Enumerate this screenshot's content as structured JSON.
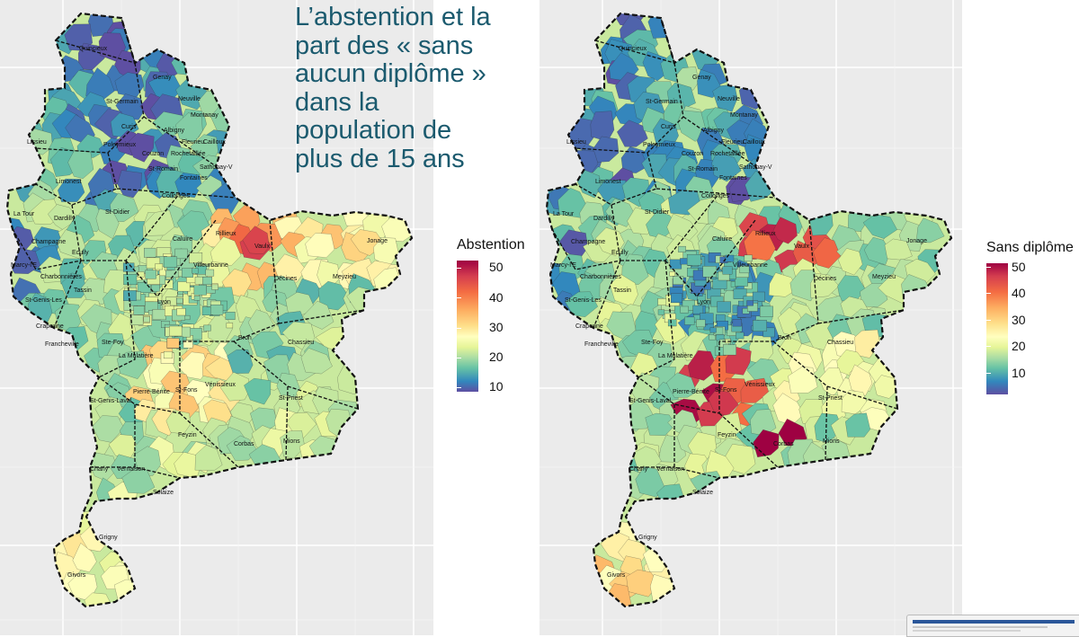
{
  "title": [
    "L’abstention et la",
    "part des « sans",
    "aucun diplôme »",
    "dans la",
    "population de",
    "plus de 15 ans"
  ],
  "maps": [
    {
      "name": "abstention",
      "legend": {
        "title": "Abstention",
        "ticks": [
          "50",
          "40",
          "30",
          "20",
          "10"
        ],
        "min": 10,
        "max": 53
      },
      "colors": {
        "low": "#3f5fa8",
        "mid": "#ffffbf",
        "high": "#9e0142"
      }
    },
    {
      "name": "sans-diplome",
      "legend": {
        "title": "Sans diplôme",
        "ticks": [
          "50",
          "40",
          "30",
          "20",
          "10"
        ],
        "min": 5,
        "max": 52
      },
      "colors": {
        "low": "#3f5fa8",
        "mid": "#ffffbf",
        "high": "#9e0142"
      }
    }
  ],
  "towns": [
    "Quincieux",
    "Genay",
    "St-Germain",
    "Neuville",
    "Montanay",
    "Curis",
    "Albigny",
    "Fleurieu",
    "Cailloux",
    "Lissieu",
    "Poleymieux",
    "Couzon",
    "Rochetaillée",
    "Sathonay-V",
    "St-Romain",
    "Fontaines",
    "Collonges",
    "Limonest",
    "Dardilly",
    "La Tour",
    "St-Didier",
    "Champagne",
    "Ecully",
    "Caluire",
    "Rillieux",
    "Vaulx",
    "Jonage",
    "Marcy-l'E",
    "Charbonnières",
    "Tassin",
    "Villeurbanne",
    "Décines",
    "Meyzieu",
    "St-Genis-Les",
    "Craponne",
    "Lyon",
    "Francheville",
    "Ste-Foy",
    "La Mulatière",
    "Bron",
    "Chassieu",
    "St-Genis-Laval",
    "Pierre-Bénite",
    "St-Fons",
    "Vénissieux",
    "St-Priest",
    "Feyzin",
    "Corbas",
    "Mions",
    "Charly",
    "Vernaison",
    "Solaize",
    "Givors",
    "Grigny"
  ],
  "thumbnail": {
    "label": "taskbar-preview"
  }
}
